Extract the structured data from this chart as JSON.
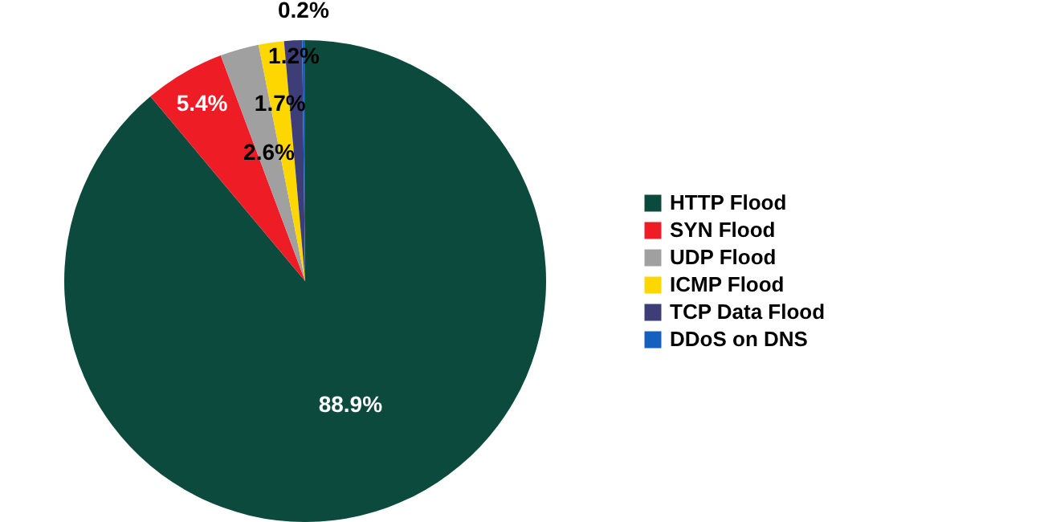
{
  "chart_data": {
    "type": "pie",
    "categories": [
      "HTTP Flood",
      "SYN Flood",
      "UDP Flood",
      "ICMP Flood",
      "TCP Data Flood",
      "DDoS on DNS"
    ],
    "values": [
      88.9,
      5.4,
      2.6,
      1.7,
      1.2,
      0.2
    ],
    "value_labels": [
      "88.9%",
      "5.4%",
      "2.6%",
      "1.7%",
      "1.2%",
      "0.2%"
    ],
    "colors": [
      "#0b4a3c",
      "#ee1c24",
      "#a0a0a0",
      "#ffd700",
      "#3d3d78",
      "#1560bd"
    ],
    "legend": "right"
  }
}
